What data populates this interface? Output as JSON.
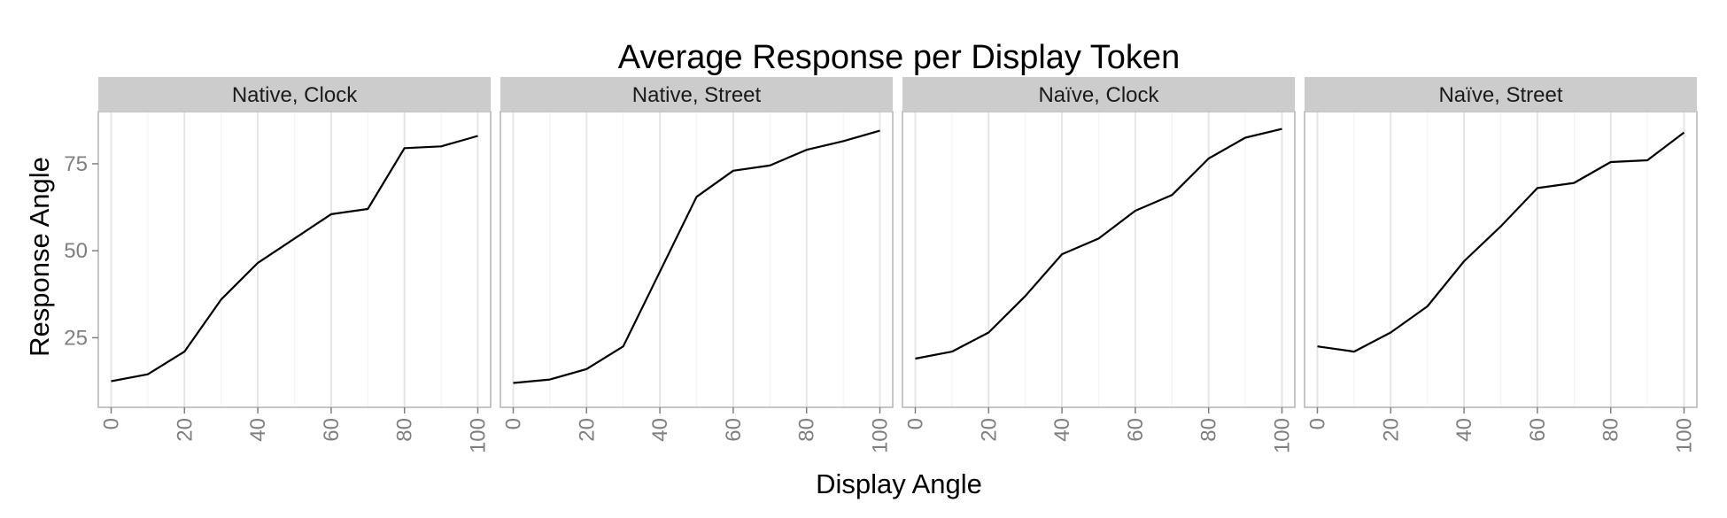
{
  "chart_data": {
    "type": "line",
    "title": "Average Response per Display Token",
    "xlabel": "Display Angle",
    "ylabel": "Response Angle",
    "xlim": [
      -3.5,
      103.5
    ],
    "ylim": [
      5,
      90
    ],
    "x_ticks": [
      0,
      20,
      40,
      60,
      80,
      100
    ],
    "x_minor_ticks": [
      10,
      30,
      50,
      70,
      90
    ],
    "y_ticks": [
      25,
      50,
      75
    ],
    "grid": true,
    "legend": "none",
    "x": [
      0,
      10,
      20,
      30,
      40,
      50,
      60,
      70,
      80,
      90,
      100
    ],
    "panels": [
      {
        "facet": "Native, Clock",
        "values": [
          12.5,
          14.5,
          21,
          36,
          46.5,
          53.5,
          60.5,
          62,
          79.5,
          80,
          83
        ]
      },
      {
        "facet": "Native, Street",
        "values": [
          12,
          13,
          16,
          22.5,
          44,
          65.5,
          73,
          74.5,
          79,
          81.5,
          84.5
        ]
      },
      {
        "facet": "Naïve, Clock",
        "values": [
          19,
          21,
          26.5,
          37,
          49,
          53.5,
          61.5,
          66,
          76.5,
          82.5,
          85
        ]
      },
      {
        "facet": "Naïve, Street",
        "values": [
          22.5,
          21,
          26.5,
          34,
          47,
          57,
          68,
          69.5,
          75.5,
          76,
          84
        ]
      }
    ]
  },
  "colors": {
    "line": "#000000",
    "strip_fill": "#cccccc",
    "major_grid": "#e5e5e5",
    "minor_grid": "#f4f4f4",
    "panel_border": "#b3b3b3",
    "tick": "#7f7f7f"
  }
}
